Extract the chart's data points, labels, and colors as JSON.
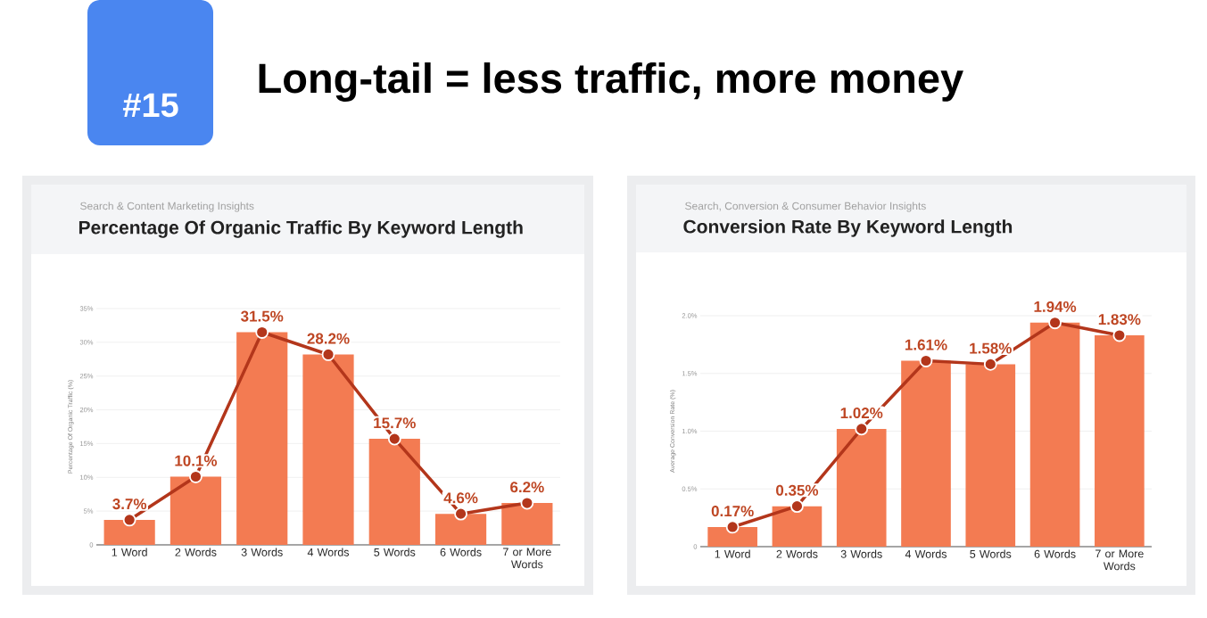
{
  "chart_data": [
    {
      "type": "bar",
      "subtitle": "Search & Content Marketing Insights",
      "title": "Percentage Of Organic Traffic By Keyword Length",
      "annotations": [
        "#15",
        "Long-tail = less traffic, more money"
      ],
      "ylabel": "Percentage Of Organic Traffic (%)",
      "categories": [
        "1 Word",
        "2 Words",
        "3 Words",
        "4 Words",
        "5 Words",
        "6 Words",
        "7 or More Words"
      ],
      "series": [
        {
          "color": "#f37b52",
          "values": [
            3.7,
            10.1,
            31.5,
            28.2,
            15.7,
            4.6,
            6.2
          ],
          "value_labels": [
            "3.7%",
            "10.1%",
            "31.5%",
            "28.2%",
            "15.7%",
            "4.6%",
            "6.2%"
          ]
        },
        {
          "type": "line",
          "color": "#b3361b",
          "values": [
            3.7,
            10.1,
            31.5,
            28.2,
            15.7,
            4.6,
            6.2
          ]
        }
      ],
      "ylim": [
        0,
        35
      ],
      "yticks": [
        0,
        {
          "value": 5,
          "label": "5%"
        },
        {
          "value": 10,
          "label": "10%"
        },
        {
          "value": 15,
          "label": "15%"
        },
        {
          "value": 20,
          "label": "20%"
        },
        {
          "value": 25,
          "label": "25%"
        },
        {
          "value": 30,
          "label": "30%"
        },
        {
          "value": 35,
          "label": "35%"
        }
      ],
      "grid": "y",
      "marker": "circle"
    },
    {
      "type": "bar",
      "subtitle": "Search, Conversion & Consumer Behavior Insights",
      "title": "Conversion Rate By Keyword Length",
      "ylabel": "Average Conversion Rate (%)",
      "categories": [
        "1 Word",
        "2 Words",
        "3 Words",
        "4 Words",
        "5 Words",
        "6 Words",
        "7 or More Words"
      ],
      "series": [
        {
          "color": "#f37b52",
          "values": [
            0.17,
            0.35,
            1.02,
            1.61,
            1.58,
            1.94,
            1.83
          ],
          "value_labels": [
            "0.17%",
            "0.35%",
            "1.02%",
            "1.61%",
            "1.58%",
            "1.94%",
            "1.83%"
          ]
        },
        {
          "type": "line",
          "color": "#b3361b",
          "values": [
            0.17,
            0.35,
            1.02,
            1.61,
            1.58,
            1.94,
            1.83
          ]
        }
      ],
      "ylim": [
        0,
        2.0
      ],
      "yticks": [
        0,
        {
          "value": 0.5,
          "label": "0.5%"
        },
        {
          "value": 1.0,
          "label": "1.0%"
        },
        {
          "value": 1.5,
          "label": "1.5%"
        },
        {
          "value": 2.0,
          "label": "2.0%"
        }
      ],
      "grid": "y",
      "marker": "circle"
    }
  ]
}
